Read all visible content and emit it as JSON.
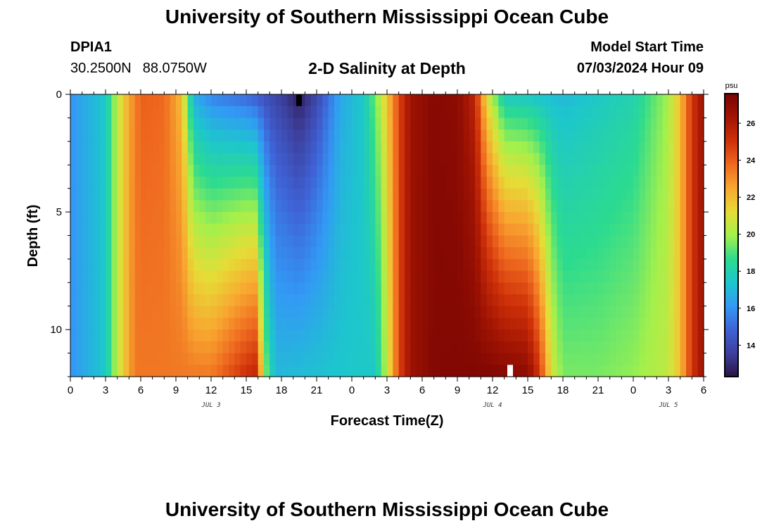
{
  "header": {
    "title": "University of Southern Mississippi Ocean Cube",
    "station": "DPIA1",
    "latitude": "30.2500N",
    "longitude": "88.0750W",
    "subtitle": "2-D Salinity at Depth",
    "start_label": "Model Start Time",
    "start_value": "07/03/2024 Hour 09"
  },
  "footer": {
    "title": "University of Southern Mississippi Ocean Cube"
  },
  "chart_data": {
    "type": "heatmap",
    "title": "2-D Salinity at Depth",
    "xlabel": "Forecast Time(Z)",
    "ylabel": "Depth (ft)",
    "x_range_hours": [
      0,
      54
    ],
    "ylim": [
      0,
      12
    ],
    "x_ticks": [
      {
        "hour": 0,
        "label": "0"
      },
      {
        "hour": 3,
        "label": "3"
      },
      {
        "hour": 6,
        "label": "6"
      },
      {
        "hour": 9,
        "label": "9"
      },
      {
        "hour": 12,
        "label": "12"
      },
      {
        "hour": 15,
        "label": "15"
      },
      {
        "hour": 18,
        "label": "18"
      },
      {
        "hour": 21,
        "label": "21"
      },
      {
        "hour": 24,
        "label": "0"
      },
      {
        "hour": 27,
        "label": "3"
      },
      {
        "hour": 30,
        "label": "6"
      },
      {
        "hour": 33,
        "label": "9"
      },
      {
        "hour": 36,
        "label": "12"
      },
      {
        "hour": 39,
        "label": "15"
      },
      {
        "hour": 42,
        "label": "18"
      },
      {
        "hour": 45,
        "label": "21"
      },
      {
        "hour": 48,
        "label": "0"
      },
      {
        "hour": 51,
        "label": "3"
      },
      {
        "hour": 54,
        "label": "6"
      }
    ],
    "day_labels": [
      {
        "hour": 12,
        "label": "JUL 3"
      },
      {
        "hour": 36,
        "label": "JUL 4"
      },
      {
        "hour": 51,
        "label": "JUL 5"
      }
    ],
    "y_ticks": [
      {
        "depth": 0,
        "label": "0"
      },
      {
        "depth": 5,
        "label": "5"
      },
      {
        "depth": 10,
        "label": "10"
      }
    ],
    "colorbar": {
      "unit": "psu",
      "min": 12.3,
      "max": 27.6,
      "ticks": [
        14,
        16,
        18,
        20,
        22,
        24,
        26
      ],
      "colors": [
        "#2b1445",
        "#3d3f9c",
        "#3f62d6",
        "#3399f5",
        "#1dc6cd",
        "#2cdb8f",
        "#a4f04b",
        "#e6dc37",
        "#f8a830",
        "#ef6a20",
        "#cf3109",
        "#a31503",
        "#7a0403"
      ]
    },
    "depth_levels_ft": [
      0,
      0.5,
      1,
      1.5,
      2,
      2.5,
      3,
      3.5,
      4,
      4.5,
      5,
      5.5,
      6,
      6.5,
      7,
      7.5,
      8,
      8.5,
      9,
      9.5,
      10,
      10.5,
      11,
      11.5,
      12
    ],
    "surface_profile": {
      "hours": [
        0,
        3,
        4,
        5,
        6,
        8,
        9.5,
        10.5,
        12,
        15,
        18,
        19.5,
        21,
        23,
        25,
        26.5,
        28,
        29,
        31,
        33,
        34.5,
        35.5,
        37,
        42,
        45,
        48,
        51,
        52,
        53,
        54
      ],
      "psu": [
        16.0,
        17.5,
        20.5,
        22.5,
        24.0,
        23.8,
        22.0,
        16.5,
        15.5,
        14.8,
        13.5,
        12.5,
        13.8,
        16.5,
        17.5,
        20.5,
        24.5,
        26.5,
        27.2,
        27.0,
        25.5,
        21.0,
        17.5,
        17.0,
        17.5,
        18.0,
        20.0,
        22.0,
        25.0,
        26.5
      ]
    },
    "bottom_profile": {
      "hours": [
        0,
        3,
        4,
        5,
        5.5,
        12,
        15,
        15.8,
        16.3,
        16.8,
        17.5,
        20,
        24,
        26,
        27,
        28,
        29,
        31,
        36,
        39,
        40,
        41,
        42,
        45,
        48,
        51,
        52,
        53,
        54
      ],
      "psu": [
        16.0,
        17.5,
        20.5,
        22.5,
        23.5,
        23.5,
        25.2,
        25.5,
        22.0,
        19.0,
        17.0,
        17.2,
        17.5,
        17.5,
        20.5,
        24.5,
        26.5,
        27.3,
        27.4,
        27.0,
        25.0,
        21.0,
        19.5,
        19.5,
        19.8,
        20.5,
        22.0,
        25.0,
        26.5
      ]
    },
    "markers": [
      {
        "hour": 19.5,
        "depth_from": 0,
        "depth_to": 0.5,
        "color": "#000000"
      },
      {
        "hour": 37.5,
        "depth_from": 11.5,
        "depth_to": 12,
        "color": "#ffffff"
      }
    ]
  }
}
